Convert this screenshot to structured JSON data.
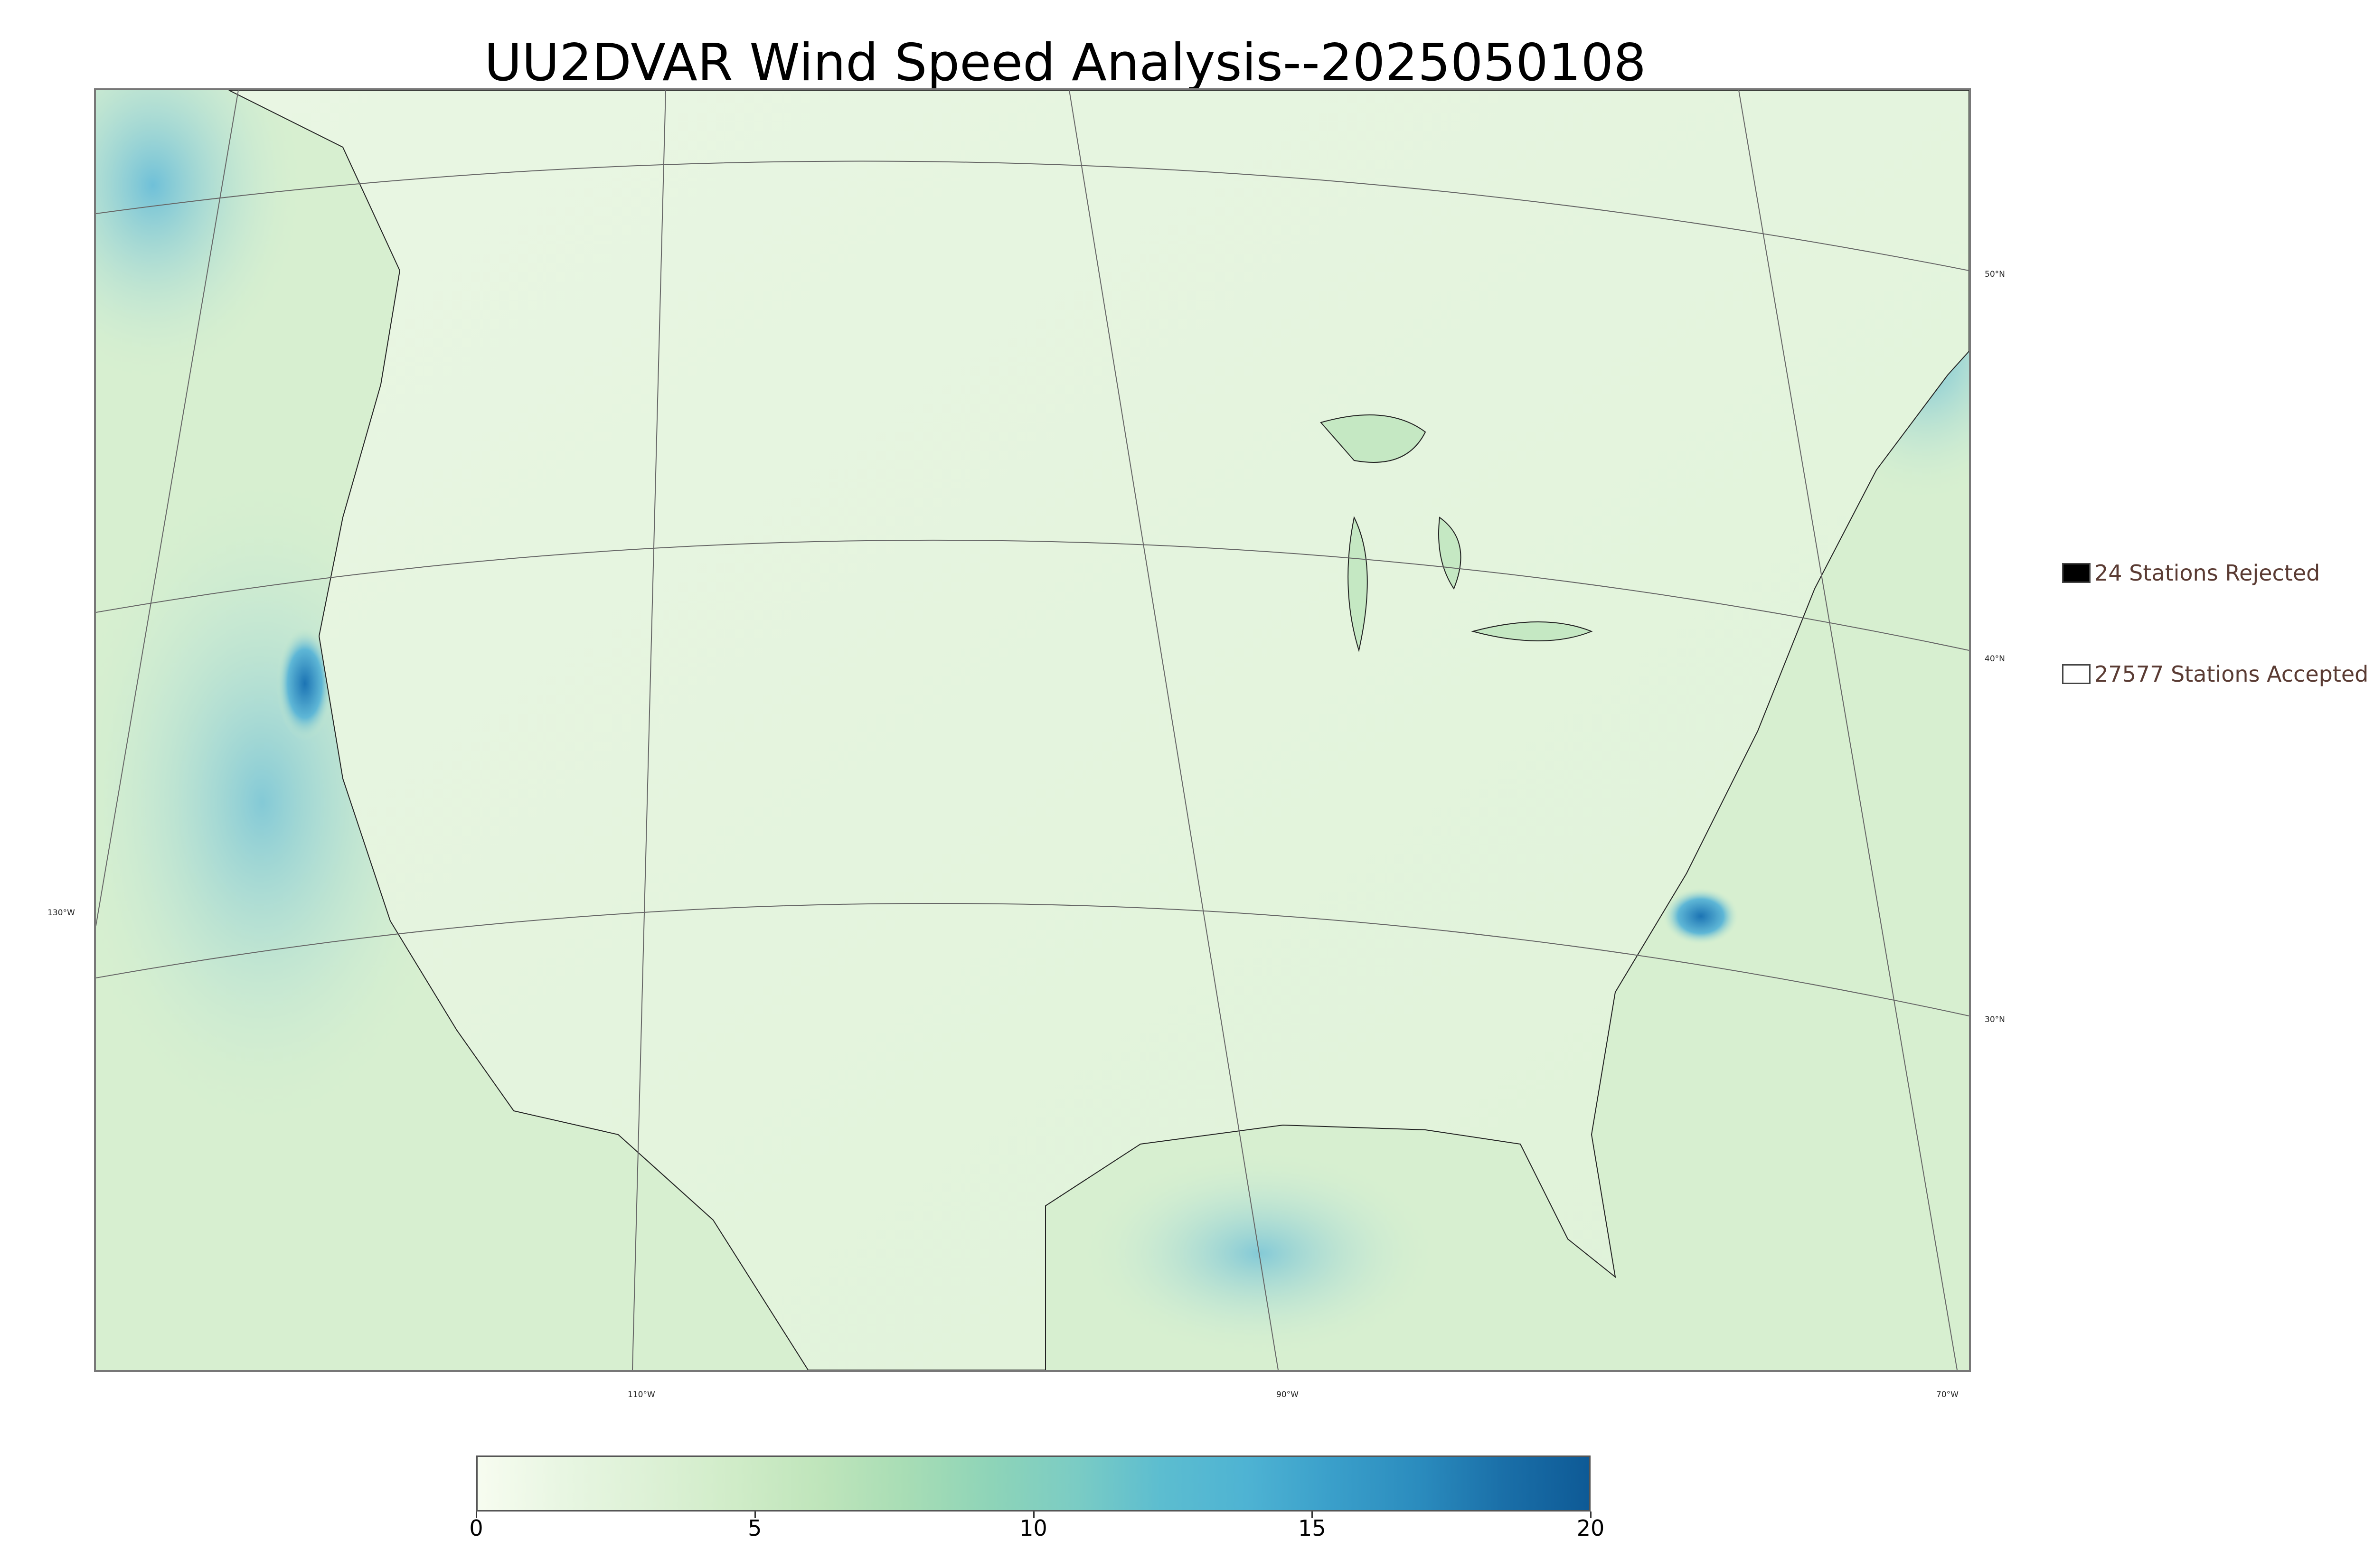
{
  "title": "UU2DVAR Wind Speed Analysis--2025050108",
  "map": {
    "lat_labels": [
      "50°N",
      "40°N",
      "30°N"
    ],
    "lon_labels": [
      "130°W",
      "110°W",
      "90°W",
      "70°W"
    ]
  },
  "legend": {
    "rejected": {
      "label": "24 Stations Rejected",
      "color": "#000000"
    },
    "accepted": {
      "label": "27577 Stations Accepted",
      "color": "#ffffff"
    }
  },
  "colorbar": {
    "ticks": [
      "0",
      "5",
      "10",
      "15",
      "20"
    ],
    "range": [
      0,
      20
    ],
    "colors": [
      "#f7fcf0",
      "#e8f6e2",
      "#ddf1d6",
      "#d0ecc8",
      "#bfe5bb",
      "#a8ddb5",
      "#8ed4b8",
      "#7bccc4",
      "#5cbdd0",
      "#4eb3d3",
      "#3a9fca",
      "#2b8cbe",
      "#1a6fa8",
      "#0e5a96"
    ]
  }
}
